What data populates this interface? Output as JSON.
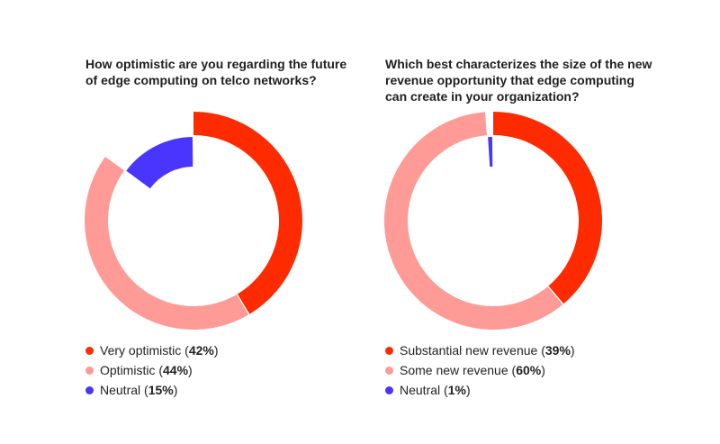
{
  "chart_data": [
    {
      "type": "pie",
      "title": "How optimistic are you regarding the future of edge computing on telco networks?",
      "categories": [
        "Very optimistic",
        "Optimistic",
        "Neutral"
      ],
      "values": [
        42,
        44,
        15
      ],
      "labels": [
        "42%",
        "44%",
        "15%"
      ],
      "colors": [
        "#ff2b00",
        "#ff9b96",
        "#4a35ff"
      ],
      "legend_placement": "bottom"
    },
    {
      "type": "pie",
      "title": "Which best characterizes the size of the new revenue opportunity that edge computing can create in your organization?",
      "categories": [
        "Substantial new revenue",
        "Some new revenue",
        "Neutral"
      ],
      "values": [
        39,
        60,
        1
      ],
      "labels": [
        "39%",
        "60%",
        "1%"
      ],
      "colors": [
        "#ff2b00",
        "#ff9b96",
        "#4a35ff"
      ],
      "legend_placement": "bottom"
    }
  ]
}
